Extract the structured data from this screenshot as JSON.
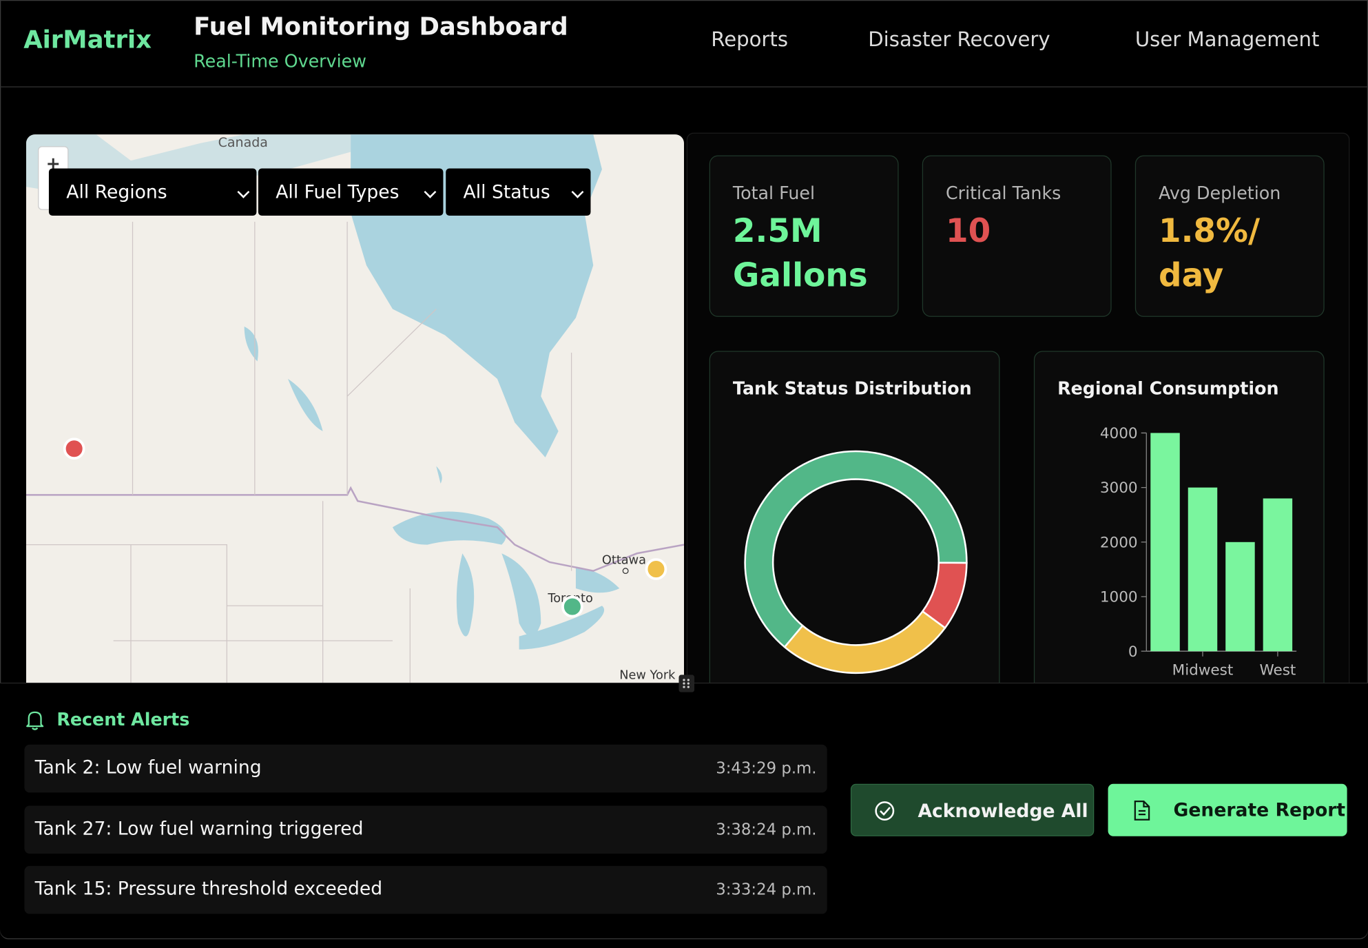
{
  "header": {
    "brand": "AirMatrix",
    "title": "Fuel Monitoring Dashboard",
    "subtitle": "Real-Time Overview",
    "nav": [
      "Reports",
      "Disaster Recovery",
      "User Management"
    ]
  },
  "map": {
    "zoom": "+",
    "labels": [
      "Canada",
      "Ottawa",
      "Toronto",
      "New York"
    ],
    "filters": [
      "All Regions",
      "All Fuel Types",
      "All Status"
    ]
  },
  "stats": [
    {
      "label": "Total Fuel",
      "value": "2.5M Gallons"
    },
    {
      "label": "Critical Tanks",
      "value": "10"
    },
    {
      "label": "Avg Depletion",
      "value": "1.8%/ day"
    }
  ],
  "chart_data": [
    {
      "type": "doughnut",
      "title": "Tank Status Distribution",
      "categories": [
        null,
        null,
        null
      ],
      "values": [
        64,
        10,
        26
      ],
      "colors": [
        "#52b788",
        "#e05252",
        "#f0c04a"
      ]
    },
    {
      "type": "bar",
      "title": "Regional Consumption",
      "categories": [
        null,
        "Midwest",
        null,
        "West"
      ],
      "values": [
        4000,
        3000,
        2000,
        2800
      ],
      "color": "#7af59e",
      "ylim": [
        0,
        4000
      ],
      "yticks": [
        0,
        1000,
        2000,
        3000,
        4000
      ]
    }
  ],
  "alerts": {
    "title": "Recent Alerts",
    "items": [
      {
        "text": "Tank 2: Low fuel warning",
        "time": "3:43:29 p.m."
      },
      {
        "text": "Tank 27: Low fuel warning triggered",
        "time": "3:38:24 p.m."
      },
      {
        "text": "Tank 15: Pressure threshold exceeded",
        "time": "3:33:24 p.m."
      }
    ]
  },
  "actions": [
    "Acknowledge All",
    "Generate Report"
  ]
}
